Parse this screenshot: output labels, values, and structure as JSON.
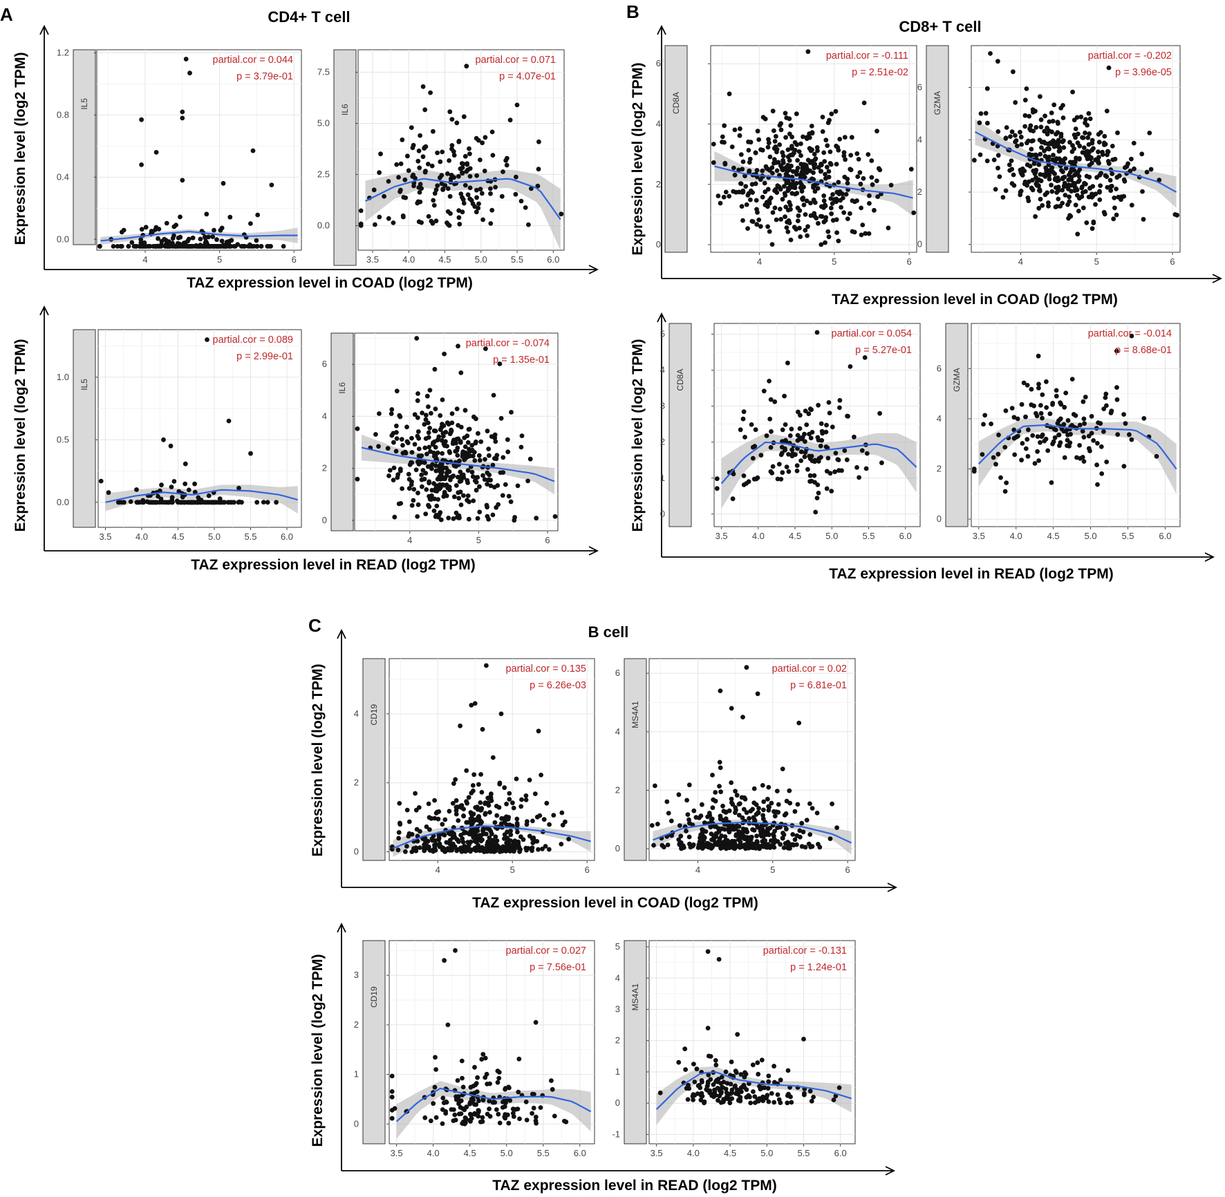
{
  "figure": {
    "panels": [
      {
        "letter": "A",
        "title": "CD4+ T cell"
      },
      {
        "letter": "B",
        "title": "CD8+ T cell"
      },
      {
        "letter": "C",
        "title": "B cell"
      }
    ],
    "ylabel": "Expression level (log2 TPM)",
    "xlabel_coad": "TAZ expression level in COAD (log2 TPM)",
    "xlabel_read": "TAZ expression level in READ (log2 TPM)"
  },
  "chart_data": [
    {
      "type": "scatter",
      "panel": "A",
      "dataset": "COAD",
      "gene": "IL5",
      "partial_cor": "partial.cor = 0.044",
      "p_value": "p = 3.79e-01",
      "xlim": [
        3.35,
        6.1
      ],
      "ylim": [
        -0.07,
        1.22
      ],
      "xticks": [
        4,
        5,
        6
      ],
      "xtick_labels": [
        "4",
        "5",
        "6"
      ],
      "yticks": [
        0.0,
        0.4,
        0.8,
        1.2
      ],
      "ytick_labels": [
        "0.0",
        "0.4",
        "0.8",
        "1.2"
      ],
      "n_points": 260,
      "points_style": "floor",
      "floor": -0.045,
      "smooth": {
        "x": [
          3.4,
          3.8,
          4.2,
          4.6,
          5.0,
          5.4,
          5.8,
          6.05
        ],
        "y": [
          -0.01,
          0.01,
          0.035,
          0.05,
          0.03,
          0.02,
          0.025,
          0.025
        ]
      },
      "ci": [
        0.025,
        0.02,
        0.015,
        0.015,
        0.015,
        0.02,
        0.03,
        0.05
      ],
      "outliers": [
        {
          "x": 4.55,
          "y": 1.16
        },
        {
          "x": 4.6,
          "y": 1.07
        },
        {
          "x": 4.5,
          "y": 0.82
        },
        {
          "x": 4.5,
          "y": 0.78
        },
        {
          "x": 3.95,
          "y": 0.77
        },
        {
          "x": 4.15,
          "y": 0.56
        },
        {
          "x": 3.95,
          "y": 0.48
        },
        {
          "x": 5.45,
          "y": 0.57
        },
        {
          "x": 5.05,
          "y": 0.36
        },
        {
          "x": 5.7,
          "y": 0.35
        },
        {
          "x": 4.5,
          "y": 0.38
        }
      ]
    },
    {
      "type": "scatter",
      "panel": "A",
      "dataset": "COAD",
      "gene": "IL6",
      "partial_cor": "partial.cor = 0.071",
      "p_value": "p = 4.07e-01",
      "xlim": [
        3.3,
        6.15
      ],
      "ylim": [
        -1.2,
        8.6
      ],
      "xticks": [
        3.5,
        4.0,
        4.5,
        5.0,
        5.5,
        6.0
      ],
      "xtick_labels": [
        "3.5",
        "4.0",
        "4.5",
        "5.0",
        "5.5",
        "6.0"
      ],
      "yticks": [
        0.0,
        2.5,
        5.0,
        7.5
      ],
      "ytick_labels": [
        "0.0",
        "2.5",
        "5.0",
        "7.5"
      ],
      "n_points": 170,
      "points_style": "spread",
      "center": 2.2,
      "spread": 1.7,
      "smooth": {
        "x": [
          3.4,
          3.8,
          4.2,
          4.6,
          5.0,
          5.4,
          5.8,
          6.1
        ],
        "y": [
          1.2,
          1.9,
          2.3,
          2.1,
          2.2,
          2.3,
          1.8,
          0.3
        ]
      },
      "ci": [
        1.0,
        0.6,
        0.45,
        0.4,
        0.4,
        0.45,
        0.7,
        1.5
      ],
      "outliers": [
        {
          "x": 4.8,
          "y": 7.8
        },
        {
          "x": 4.2,
          "y": 6.8
        },
        {
          "x": 4.3,
          "y": 6.5
        },
        {
          "x": 5.5,
          "y": 5.9
        },
        {
          "x": 5.8,
          "y": 4.1
        },
        {
          "x": 4.6,
          "y": 5.2
        }
      ]
    },
    {
      "type": "scatter",
      "panel": "A",
      "dataset": "READ",
      "gene": "IL5",
      "partial_cor": "partial.cor = 0.089",
      "p_value": "p = 2.99e-01",
      "xlim": [
        3.4,
        6.2
      ],
      "ylim": [
        -0.2,
        1.38
      ],
      "xticks": [
        3.5,
        4.0,
        4.5,
        5.0,
        5.5,
        6.0
      ],
      "xtick_labels": [
        "3.5",
        "4.0",
        "4.5",
        "5.0",
        "5.5",
        "6.0"
      ],
      "yticks": [
        0.0,
        0.5,
        1.0
      ],
      "ytick_labels": [
        "0.0",
        "0.5",
        "1.0"
      ],
      "n_points": 140,
      "points_style": "floor",
      "floor": 0.0,
      "smooth": {
        "x": [
          3.5,
          3.9,
          4.3,
          4.7,
          5.1,
          5.5,
          5.9,
          6.15
        ],
        "y": [
          0.0,
          0.05,
          0.08,
          0.06,
          0.1,
          0.09,
          0.06,
          0.02
        ]
      },
      "ci": [
        0.07,
        0.05,
        0.04,
        0.04,
        0.04,
        0.05,
        0.06,
        0.11
      ],
      "outliers": [
        {
          "x": 4.9,
          "y": 1.3
        },
        {
          "x": 5.2,
          "y": 0.65
        },
        {
          "x": 4.3,
          "y": 0.5
        },
        {
          "x": 4.4,
          "y": 0.45
        },
        {
          "x": 5.5,
          "y": 0.39
        }
      ]
    },
    {
      "type": "scatter",
      "panel": "A",
      "dataset": "READ",
      "gene": "IL6",
      "partial_cor": "partial.cor = -0.074",
      "p_value": "p = 1.35e-01",
      "xlim": [
        3.2,
        6.15
      ],
      "ylim": [
        -0.4,
        7.2
      ],
      "xticks": [
        4,
        5,
        6
      ],
      "xtick_labels": [
        "4",
        "5",
        "6"
      ],
      "yticks": [
        0,
        2,
        4,
        6
      ],
      "ytick_labels": [
        "0",
        "2",
        "4",
        "6"
      ],
      "n_points": 380,
      "points_style": "spread",
      "center": 2.2,
      "spread": 1.6,
      "smooth": {
        "x": [
          3.3,
          3.8,
          4.3,
          4.8,
          5.3,
          5.8,
          6.1
        ],
        "y": [
          2.8,
          2.5,
          2.3,
          2.15,
          2.0,
          1.8,
          1.5
        ]
      },
      "ci": [
        0.5,
        0.3,
        0.2,
        0.18,
        0.2,
        0.3,
        0.5
      ],
      "outliers": [
        {
          "x": 4.1,
          "y": 7.0
        },
        {
          "x": 4.7,
          "y": 6.7
        },
        {
          "x": 5.1,
          "y": 6.6
        },
        {
          "x": 4.5,
          "y": 6.4
        }
      ]
    },
    {
      "type": "scatter",
      "panel": "B",
      "dataset": "COAD",
      "gene": "CD8A",
      "partial_cor": "partial.cor = -0.111",
      "p_value": "p = 2.51e-02",
      "xlim": [
        3.35,
        6.1
      ],
      "ylim": [
        -0.25,
        6.6
      ],
      "xticks": [
        4,
        5,
        6
      ],
      "xtick_labels": [
        "4",
        "5",
        "6"
      ],
      "yticks": [
        0,
        2,
        4,
        6
      ],
      "ytick_labels": [
        "0",
        "2",
        "4",
        "6"
      ],
      "n_points": 420,
      "points_style": "spread",
      "center": 2.0,
      "spread": 1.25,
      "smooth": {
        "x": [
          3.4,
          3.8,
          4.2,
          4.6,
          5.0,
          5.4,
          5.8,
          6.05
        ],
        "y": [
          2.6,
          2.35,
          2.25,
          2.15,
          1.95,
          1.8,
          1.7,
          1.55
        ]
      },
      "ci": [
        0.5,
        0.25,
        0.15,
        0.12,
        0.13,
        0.18,
        0.3,
        0.6
      ],
      "outliers": [
        {
          "x": 4.65,
          "y": 6.4
        },
        {
          "x": 3.6,
          "y": 5.0
        },
        {
          "x": 5.4,
          "y": 4.7
        }
      ]
    },
    {
      "type": "scatter",
      "panel": "B",
      "dataset": "COAD",
      "gene": "GZMA",
      "partial_cor": "partial.cor = -0.202",
      "p_value": "p = 3.96e-05",
      "xlim": [
        3.35,
        6.1
      ],
      "ylim": [
        -0.3,
        7.6
      ],
      "xticks": [
        4,
        5,
        6
      ],
      "xtick_labels": [
        "4",
        "5",
        "6"
      ],
      "yticks": [
        0,
        2,
        4,
        6
      ],
      "ytick_labels": [
        "0",
        "2",
        "4",
        "6"
      ],
      "n_points": 420,
      "points_style": "spread",
      "center": 3.0,
      "spread": 1.3,
      "smooth": {
        "x": [
          3.4,
          3.8,
          4.2,
          4.6,
          5.0,
          5.4,
          5.8,
          6.05
        ],
        "y": [
          4.3,
          3.7,
          3.2,
          3.0,
          2.9,
          2.75,
          2.4,
          2.0
        ]
      },
      "ci": [
        0.5,
        0.3,
        0.2,
        0.15,
        0.15,
        0.2,
        0.35,
        0.6
      ],
      "outliers": [
        {
          "x": 3.6,
          "y": 7.3
        },
        {
          "x": 3.7,
          "y": 7.0
        },
        {
          "x": 3.9,
          "y": 6.6
        }
      ]
    },
    {
      "type": "scatter",
      "panel": "B",
      "dataset": "READ",
      "gene": "CD8A",
      "partial_cor": "partial.cor = 0.054",
      "p_value": "p = 5.27e-01",
      "xlim": [
        3.4,
        6.2
      ],
      "ylim": [
        -0.35,
        5.3
      ],
      "xticks": [
        3.5,
        4.0,
        4.5,
        5.0,
        5.5,
        6.0
      ],
      "xtick_labels": [
        "3.5",
        "4.0",
        "4.5",
        "5.0",
        "5.5",
        "6.0"
      ],
      "yticks": [
        0,
        1,
        2,
        3,
        4,
        5
      ],
      "ytick_labels": [
        "0",
        "1",
        "2",
        "3",
        "4",
        "5"
      ],
      "n_points": 150,
      "points_style": "spread",
      "center": 1.85,
      "spread": 0.95,
      "smooth": {
        "x": [
          3.5,
          3.8,
          4.1,
          4.4,
          4.8,
          5.2,
          5.6,
          5.9,
          6.15
        ],
        "y": [
          0.85,
          1.55,
          2.0,
          1.95,
          1.75,
          1.85,
          1.95,
          1.8,
          1.3
        ]
      },
      "ci": [
        0.7,
        0.4,
        0.25,
        0.2,
        0.2,
        0.2,
        0.3,
        0.45,
        0.7
      ],
      "outliers": [
        {
          "x": 4.8,
          "y": 5.05
        },
        {
          "x": 4.4,
          "y": 4.2
        },
        {
          "x": 5.45,
          "y": 4.35
        },
        {
          "x": 5.25,
          "y": 4.1
        }
      ]
    },
    {
      "type": "scatter",
      "panel": "B",
      "dataset": "READ",
      "gene": "GZMA",
      "partial_cor": "partial.cor = -0.014",
      "p_value": "p = 8.68e-01",
      "xlim": [
        3.4,
        6.2
      ],
      "ylim": [
        -0.3,
        7.8
      ],
      "xticks": [
        3.5,
        4.0,
        4.5,
        5.0,
        5.5,
        6.0
      ],
      "xtick_labels": [
        "3.5",
        "4.0",
        "4.5",
        "5.0",
        "5.5",
        "6.0"
      ],
      "yticks": [
        0,
        2,
        4,
        6
      ],
      "ytick_labels": [
        "0",
        "2",
        "4",
        "6"
      ],
      "n_points": 150,
      "points_style": "spread",
      "center": 3.6,
      "spread": 1.2,
      "smooth": {
        "x": [
          3.5,
          3.8,
          4.1,
          4.4,
          4.8,
          5.2,
          5.6,
          5.9,
          6.15
        ],
        "y": [
          2.2,
          3.1,
          3.7,
          3.75,
          3.6,
          3.6,
          3.55,
          3.0,
          2.0
        ]
      },
      "ci": [
        0.9,
        0.5,
        0.3,
        0.25,
        0.25,
        0.25,
        0.35,
        0.6,
        1.0
      ],
      "outliers": [
        {
          "x": 5.55,
          "y": 7.3
        },
        {
          "x": 5.35,
          "y": 6.7
        },
        {
          "x": 4.3,
          "y": 6.5
        }
      ]
    },
    {
      "type": "scatter",
      "panel": "C",
      "dataset": "COAD",
      "gene": "CD19",
      "partial_cor": "partial.cor = 0.135",
      "p_value": "p = 6.26e-03",
      "xlim": [
        3.35,
        6.1
      ],
      "ylim": [
        -0.25,
        5.6
      ],
      "xticks": [
        4,
        5,
        6
      ],
      "xtick_labels": [
        "4",
        "5",
        "6"
      ],
      "yticks": [
        0,
        2,
        4
      ],
      "ytick_labels": [
        "0",
        "2",
        "4"
      ],
      "n_points": 420,
      "points_style": "skewed",
      "center": 0.3,
      "spread": 0.9,
      "smooth": {
        "x": [
          3.4,
          3.8,
          4.2,
          4.6,
          5.0,
          5.4,
          5.8,
          6.05
        ],
        "y": [
          0.1,
          0.45,
          0.65,
          0.75,
          0.7,
          0.6,
          0.45,
          0.3
        ]
      },
      "ci": [
        0.25,
        0.15,
        0.1,
        0.08,
        0.08,
        0.1,
        0.15,
        0.3
      ],
      "outliers": [
        {
          "x": 4.65,
          "y": 5.4
        },
        {
          "x": 4.5,
          "y": 4.3
        },
        {
          "x": 4.45,
          "y": 4.25
        },
        {
          "x": 4.85,
          "y": 4.0
        },
        {
          "x": 4.3,
          "y": 3.65
        },
        {
          "x": 4.6,
          "y": 3.55
        },
        {
          "x": 5.35,
          "y": 3.5
        }
      ]
    },
    {
      "type": "scatter",
      "panel": "C",
      "dataset": "COAD",
      "gene": "MS4A1",
      "partial_cor": "partial.cor = 0.02",
      "p_value": "p = 6.81e-01",
      "xlim": [
        3.35,
        6.1
      ],
      "ylim": [
        -0.4,
        6.5
      ],
      "xticks": [
        4,
        5,
        6
      ],
      "xtick_labels": [
        "4",
        "5",
        "6"
      ],
      "yticks": [
        0,
        2,
        4,
        6
      ],
      "ytick_labels": [
        "0",
        "2",
        "4",
        "6"
      ],
      "n_points": 420,
      "points_style": "skewed",
      "center": 0.3,
      "spread": 1.0,
      "smooth": {
        "x": [
          3.4,
          3.8,
          4.2,
          4.6,
          5.0,
          5.4,
          5.8,
          6.05
        ],
        "y": [
          0.3,
          0.7,
          0.85,
          0.9,
          0.85,
          0.75,
          0.5,
          0.2
        ]
      },
      "ci": [
        0.3,
        0.18,
        0.12,
        0.1,
        0.1,
        0.12,
        0.2,
        0.4
      ],
      "outliers": [
        {
          "x": 4.65,
          "y": 6.2
        },
        {
          "x": 4.3,
          "y": 5.4
        },
        {
          "x": 4.8,
          "y": 5.3
        },
        {
          "x": 4.45,
          "y": 4.8
        },
        {
          "x": 4.6,
          "y": 4.5
        },
        {
          "x": 5.35,
          "y": 4.3
        }
      ]
    },
    {
      "type": "scatter",
      "panel": "C",
      "dataset": "READ",
      "gene": "CD19",
      "partial_cor": "partial.cor = 0.027",
      "p_value": "p = 7.56e-01",
      "xlim": [
        3.4,
        6.2
      ],
      "ylim": [
        -0.4,
        3.7
      ],
      "xticks": [
        3.5,
        4.0,
        4.5,
        5.0,
        5.5,
        6.0
      ],
      "xtick_labels": [
        "3.5",
        "4.0",
        "4.5",
        "5.0",
        "5.5",
        "6.0"
      ],
      "yticks": [
        0,
        1,
        2,
        3
      ],
      "ytick_labels": [
        "0",
        "1",
        "2",
        "3"
      ],
      "n_points": 160,
      "points_style": "skewed",
      "center": 0.3,
      "spread": 0.55,
      "smooth": {
        "x": [
          3.5,
          3.8,
          4.1,
          4.4,
          4.8,
          5.2,
          5.6,
          5.9,
          6.15
        ],
        "y": [
          0.05,
          0.45,
          0.72,
          0.62,
          0.5,
          0.55,
          0.55,
          0.45,
          0.25
        ]
      },
      "ci": [
        0.35,
        0.2,
        0.15,
        0.12,
        0.12,
        0.12,
        0.15,
        0.25,
        0.4
      ],
      "outliers": [
        {
          "x": 4.3,
          "y": 3.5
        },
        {
          "x": 4.15,
          "y": 3.3
        },
        {
          "x": 4.2,
          "y": 2.0
        },
        {
          "x": 5.4,
          "y": 2.05
        }
      ]
    },
    {
      "type": "scatter",
      "panel": "C",
      "dataset": "READ",
      "gene": "MS4A1",
      "partial_cor": "partial.cor = -0.131",
      "p_value": "p = 1.24e-01",
      "xlim": [
        3.4,
        6.2
      ],
      "ylim": [
        -1.3,
        5.2
      ],
      "xticks": [
        3.5,
        4.0,
        4.5,
        5.0,
        5.5,
        6.0
      ],
      "xtick_labels": [
        "3.5",
        "4.0",
        "4.5",
        "5.0",
        "5.5",
        "6.0"
      ],
      "yticks": [
        -1,
        0,
        1,
        2,
        3,
        4,
        5
      ],
      "ytick_labels": [
        "-1",
        "0",
        "1",
        "2",
        "3",
        "4",
        "5"
      ],
      "n_points": 170,
      "points_style": "skewed",
      "center": 0.3,
      "spread": 0.6,
      "smooth": {
        "x": [
          3.5,
          3.8,
          4.1,
          4.3,
          4.6,
          5.0,
          5.4,
          5.8,
          6.15
        ],
        "y": [
          -0.2,
          0.5,
          0.95,
          1.0,
          0.75,
          0.6,
          0.55,
          0.4,
          0.15
        ]
      },
      "ci": [
        0.5,
        0.3,
        0.2,
        0.18,
        0.15,
        0.12,
        0.15,
        0.25,
        0.45
      ],
      "outliers": [
        {
          "x": 4.2,
          "y": 4.85
        },
        {
          "x": 4.35,
          "y": 4.6
        },
        {
          "x": 4.2,
          "y": 2.4
        },
        {
          "x": 4.6,
          "y": 2.2
        },
        {
          "x": 5.5,
          "y": 2.05
        }
      ]
    }
  ]
}
